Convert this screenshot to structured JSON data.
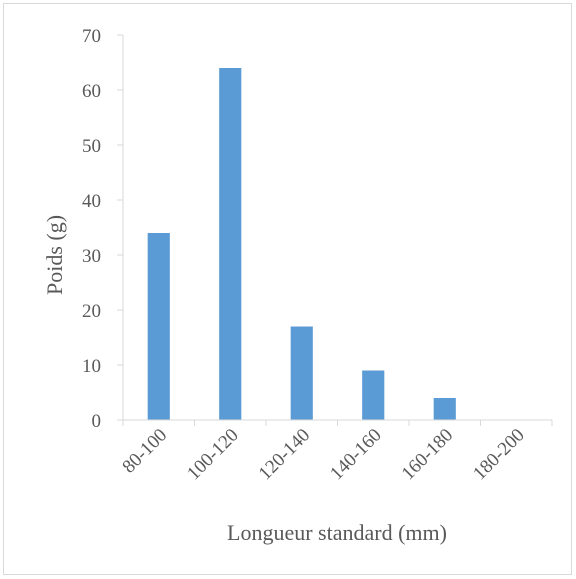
{
  "chart_data": {
    "type": "bar",
    "title": "",
    "xlabel": "Longueur standard (mm)",
    "ylabel": "Poids (g)",
    "categories": [
      "80-100",
      "100-120",
      "120-140",
      "140-160",
      "160-180",
      "180-200"
    ],
    "values": [
      34,
      64,
      17,
      9,
      4,
      0
    ],
    "ylim": [
      0,
      70
    ],
    "yticks": [
      0,
      10,
      20,
      30,
      40,
      50,
      60,
      70
    ],
    "grid": false,
    "legend": "none",
    "bar_color": "#5b9bd5",
    "axis_color": "#d9d9d9",
    "text_color": "#595959"
  }
}
